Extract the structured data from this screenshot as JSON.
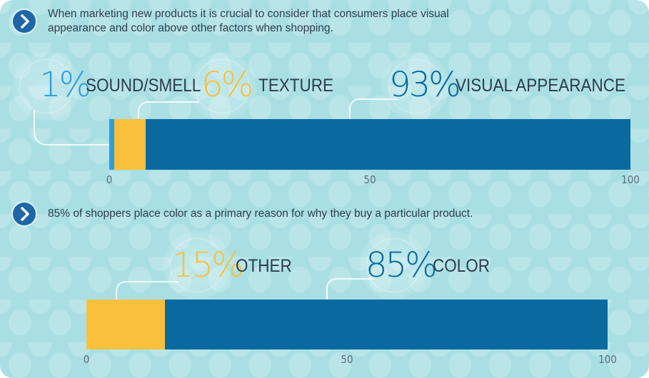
{
  "sections": [
    {
      "caption_lines": [
        "When marketing new products it is crucial to consider that consumers place visual",
        "appearance and color above other factors when shopping."
      ]
    },
    {
      "caption_lines": [
        "85% of shoppers place color as a primary reason for why they buy a particular product."
      ]
    }
  ],
  "icons": {
    "arrow": "chevron-right-icon"
  },
  "colors": {
    "light_blue": "#2e9ddf",
    "yellow": "#f8c03c",
    "dark_blue": "#0a6aa0",
    "background": "#a9dfe3"
  },
  "chart_data": [
    {
      "type": "bar",
      "orientation": "horizontal-stacked",
      "xlim": [
        0,
        100
      ],
      "xticks": [
        "0",
        "50",
        "100"
      ],
      "segments": [
        {
          "name": "SOUND/SMELL",
          "value": 1,
          "label": "1%",
          "color": "#2e9ddf"
        },
        {
          "name": "TEXTURE",
          "value": 6,
          "label": "6%",
          "color": "#f8c03c"
        },
        {
          "name": "VISUAL APPEARANCE",
          "value": 93,
          "label": "93%",
          "color": "#0a6aa0"
        }
      ]
    },
    {
      "type": "bar",
      "orientation": "horizontal-stacked",
      "xlim": [
        0,
        100
      ],
      "xticks": [
        "0",
        "50",
        "100"
      ],
      "segments": [
        {
          "name": "OTHER",
          "value": 15,
          "label": "15%",
          "color": "#f8c03c"
        },
        {
          "name": "COLOR",
          "value": 85,
          "label": "85%",
          "color": "#0a6aa0"
        }
      ]
    }
  ]
}
